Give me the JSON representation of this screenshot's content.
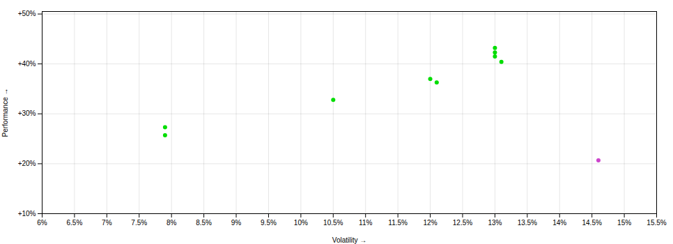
{
  "chart_data": {
    "type": "scatter",
    "xlabel": "Volatility",
    "ylabel": "Performance",
    "xlim": [
      0.06,
      0.155
    ],
    "ylim": [
      0.1,
      0.505
    ],
    "xticks": [
      {
        "value": 0.06,
        "label": "6%"
      },
      {
        "value": 0.065,
        "label": "6.5%"
      },
      {
        "value": 0.07,
        "label": "7%"
      },
      {
        "value": 0.075,
        "label": "7.5%"
      },
      {
        "value": 0.08,
        "label": "8%"
      },
      {
        "value": 0.085,
        "label": "8.5%"
      },
      {
        "value": 0.09,
        "label": "9%"
      },
      {
        "value": 0.095,
        "label": "9.5%"
      },
      {
        "value": 0.1,
        "label": "10%"
      },
      {
        "value": 0.105,
        "label": "10.5%"
      },
      {
        "value": 0.11,
        "label": "11%"
      },
      {
        "value": 0.115,
        "label": "11.5%"
      },
      {
        "value": 0.12,
        "label": "12%"
      },
      {
        "value": 0.125,
        "label": "12.5%"
      },
      {
        "value": 0.13,
        "label": "13%"
      },
      {
        "value": 0.135,
        "label": "13.5%"
      },
      {
        "value": 0.14,
        "label": "14%"
      },
      {
        "value": 0.145,
        "label": "14.5%"
      },
      {
        "value": 0.15,
        "label": "15%"
      },
      {
        "value": 0.155,
        "label": "15.5%"
      }
    ],
    "yticks": [
      {
        "value": 0.1,
        "label": "+10%"
      },
      {
        "value": 0.2,
        "label": "+20%"
      },
      {
        "value": 0.3,
        "label": "+30%"
      },
      {
        "value": 0.4,
        "label": "+40%"
      },
      {
        "value": 0.5,
        "label": "+50%"
      }
    ],
    "grid": true,
    "series": [
      {
        "color": "#00dd00",
        "x": [
          0.079,
          0.079,
          0.105,
          0.12,
          0.121,
          0.13,
          0.13,
          0.13,
          0.131
        ],
        "values": [
          0.273,
          0.257,
          0.328,
          0.37,
          0.363,
          0.432,
          0.423,
          0.415,
          0.404
        ]
      },
      {
        "color": "#cc44cc",
        "x": [
          0.146
        ],
        "values": [
          0.207
        ]
      }
    ]
  }
}
